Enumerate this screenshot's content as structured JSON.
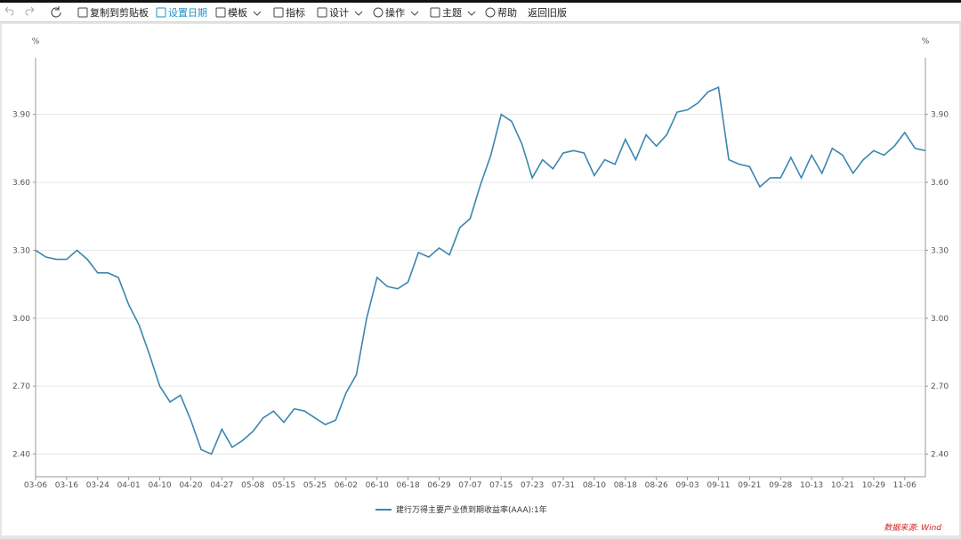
{
  "toolbar": {
    "items": [
      "复制到剪贴板",
      "设置日期",
      "模板",
      "指标",
      "设计",
      "操作",
      "主题",
      "帮助",
      "返回旧版"
    ]
  },
  "chart_data": {
    "type": "line",
    "y_unit": "%",
    "y2_unit": "%",
    "categories": [
      "03-06",
      null,
      null,
      "03-16",
      null,
      null,
      "03-24",
      null,
      null,
      "04-01",
      null,
      null,
      "04-10",
      null,
      null,
      "04-20",
      null,
      null,
      "04-27",
      null,
      null,
      "05-08",
      null,
      null,
      "05-15",
      null,
      null,
      "05-25",
      null,
      null,
      "06-02",
      null,
      null,
      "06-10",
      null,
      null,
      "06-18",
      null,
      null,
      "06-29",
      null,
      null,
      "07-07",
      null,
      null,
      "07-15",
      null,
      null,
      "07-23",
      null,
      null,
      "07-31",
      null,
      null,
      "08-10",
      null,
      null,
      "08-18",
      null,
      null,
      "08-26",
      null,
      null,
      "09-03",
      null,
      null,
      "09-11",
      null,
      null,
      "09-21",
      null,
      null,
      "09-28",
      null,
      null,
      "10-13",
      null,
      null,
      "10-21",
      null,
      null,
      "10-29",
      null,
      null,
      "11-06",
      null,
      null
    ],
    "series": [
      {
        "name": "建行万得主要产业债到期收益率(AAA):1年",
        "color": "#3a86b0",
        "values": [
          3.3,
          3.27,
          3.26,
          3.26,
          3.3,
          3.26,
          3.2,
          3.2,
          3.18,
          3.06,
          2.97,
          2.84,
          2.7,
          2.63,
          2.66,
          2.55,
          2.42,
          2.4,
          2.51,
          2.43,
          2.46,
          2.5,
          2.56,
          2.59,
          2.54,
          2.6,
          2.59,
          2.56,
          2.53,
          2.55,
          2.67,
          2.75,
          3.0,
          3.18,
          3.14,
          3.13,
          3.16,
          3.29,
          3.27,
          3.31,
          3.28,
          3.4,
          3.44,
          3.59,
          3.72,
          3.9,
          3.87,
          3.77,
          3.62,
          3.7,
          3.66,
          3.73,
          3.74,
          3.73,
          3.63,
          3.7,
          3.68,
          3.79,
          3.7,
          3.81,
          3.76,
          3.81,
          3.91,
          3.92,
          3.95,
          4.0,
          4.02,
          3.7,
          3.68,
          3.67,
          3.58,
          3.62,
          3.62,
          3.71,
          3.62,
          3.72,
          3.64,
          3.75,
          3.72,
          3.64,
          3.7,
          3.74,
          3.72,
          3.76,
          3.82,
          3.75,
          3.74
        ]
      }
    ],
    "ylim": [
      2.3,
      4.15
    ],
    "yticks": [
      {
        "value": 2.4,
        "label": "2.40"
      },
      {
        "value": 2.7,
        "label": "2.70"
      },
      {
        "value": 3.0,
        "label": "3.00"
      },
      {
        "value": 3.3,
        "label": "3.30"
      },
      {
        "value": 3.6,
        "label": "3.60"
      },
      {
        "value": 3.9,
        "label": "3.90"
      }
    ],
    "y2lim": [
      2.3,
      4.15
    ],
    "y2ticks": [
      {
        "value": 2.4,
        "label": "2.40"
      },
      {
        "value": 2.7,
        "label": "2.70"
      },
      {
        "value": 3.0,
        "label": "3.00"
      },
      {
        "value": 3.3,
        "label": "3.30"
      },
      {
        "value": 3.6,
        "label": "3.60"
      },
      {
        "value": 3.9,
        "label": "3.90"
      }
    ],
    "grid": true,
    "legend": "bottom",
    "source": "数据来源: Wind"
  }
}
